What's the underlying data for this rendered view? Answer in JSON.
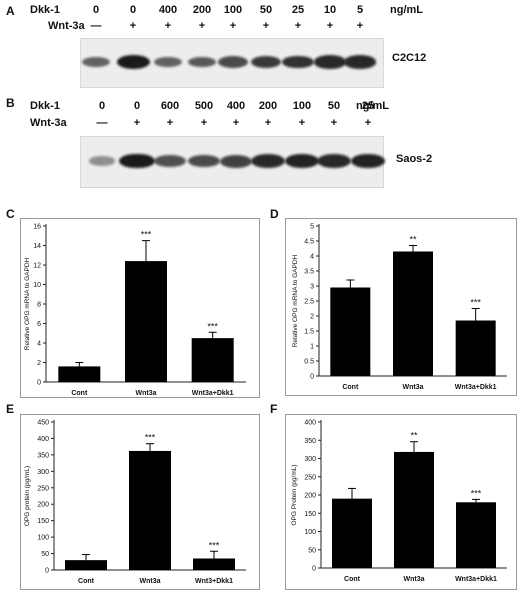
{
  "panels": {
    "A": "A",
    "B": "B",
    "C": "C",
    "D": "D",
    "E": "E",
    "F": "F"
  },
  "blotA": {
    "dkk_label": "Dkk-1",
    "wnt_label": "Wnt-3a",
    "unit": "ng/mL",
    "cell_line": "C2C12",
    "dkk_doses": [
      "0",
      "0",
      "400",
      "200",
      "100",
      "50",
      "25",
      "10",
      "5"
    ],
    "wnt_marks": [
      "—",
      "+",
      "+",
      "+",
      "+",
      "+",
      "+",
      "+",
      "+"
    ],
    "band_intensity": [
      0.55,
      1.0,
      0.55,
      0.6,
      0.7,
      0.8,
      0.85,
      0.9,
      0.9
    ]
  },
  "blotB": {
    "dkk_label": "Dkk-1",
    "wnt_label": "Wnt-3a",
    "unit": "ng/mL",
    "cell_line": "Saos-2",
    "dkk_doses": [
      "0",
      "0",
      "600",
      "500",
      "400",
      "200",
      "100",
      "50",
      "25"
    ],
    "wnt_marks": [
      "—",
      "+",
      "+",
      "+",
      "+",
      "+",
      "+",
      "+",
      "+"
    ],
    "band_intensity": [
      0.25,
      1.0,
      0.65,
      0.7,
      0.75,
      0.9,
      0.95,
      0.9,
      0.95
    ]
  },
  "chart_data": [
    {
      "panel": "C",
      "type": "bar",
      "categories": [
        "Cont",
        "Wnt3a",
        "Wnt3a+Dkk1"
      ],
      "values": [
        1.6,
        12.4,
        4.5
      ],
      "errors": [
        0.4,
        2.1,
        0.6
      ],
      "significance": [
        "",
        "***",
        "***"
      ],
      "ylabel": "Relative OPG mRNA to GAPDH",
      "ylim": [
        0,
        16
      ],
      "yticks": [
        "0",
        "2",
        "4",
        "6",
        "8",
        "10",
        "12",
        "14",
        "16"
      ]
    },
    {
      "panel": "D",
      "type": "bar",
      "categories": [
        "Cont",
        "Wnt3a",
        "Wnt3a+Dkk1"
      ],
      "values": [
        2.95,
        4.15,
        1.85
      ],
      "errors": [
        0.25,
        0.2,
        0.4
      ],
      "significance": [
        "",
        "**",
        "***"
      ],
      "ylabel": "Relative OPG mRNA to GAPDH",
      "ylim": [
        0,
        5
      ],
      "yticks": [
        "0",
        "0.5",
        "1",
        "1.5",
        "2",
        "2.5",
        "3",
        "3.5",
        "4",
        "4.5",
        "5"
      ]
    },
    {
      "panel": "E",
      "type": "bar",
      "categories": [
        "Cont",
        "Wnt3a",
        "Wnt3+Dkk1"
      ],
      "values": [
        30,
        362,
        35
      ],
      "errors": [
        17,
        22,
        22
      ],
      "significance": [
        "",
        "***",
        "***"
      ],
      "ylabel": "OPG protein (pg/mL)",
      "ylim": [
        0,
        450
      ],
      "yticks": [
        "0",
        "50",
        "100",
        "150",
        "200",
        "250",
        "300",
        "350",
        "400",
        "450"
      ]
    },
    {
      "panel": "F",
      "type": "bar",
      "categories": [
        "Cont",
        "Wnt3a",
        "Wnt3a+Dkk1"
      ],
      "values": [
        190,
        318,
        180
      ],
      "errors": [
        28,
        28,
        8
      ],
      "significance": [
        "",
        "**",
        "***"
      ],
      "ylabel": "OPG Protein (pg/mL)",
      "ylim": [
        0,
        400
      ],
      "yticks": [
        "0",
        "50",
        "100",
        "150",
        "200",
        "250",
        "300",
        "350",
        "400"
      ]
    }
  ]
}
